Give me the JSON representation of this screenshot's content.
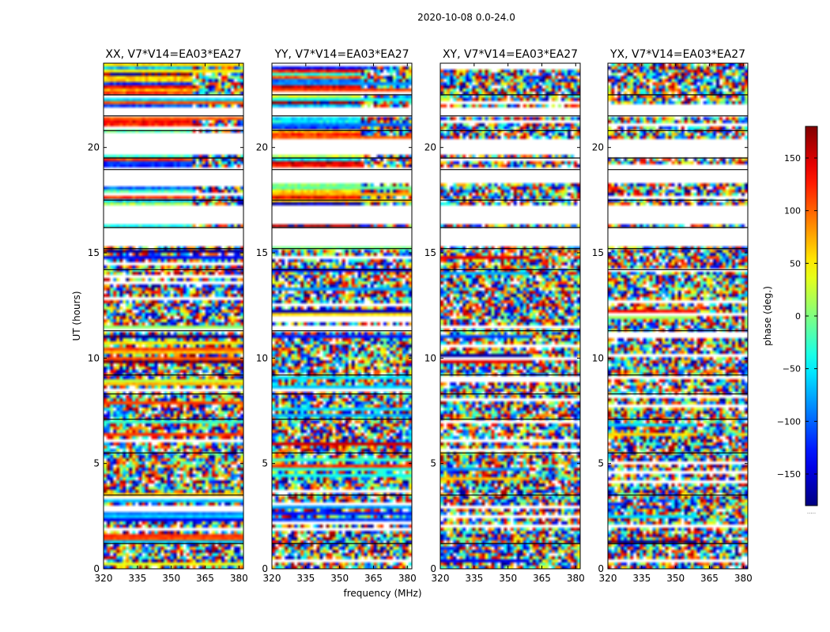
{
  "suptitle": "2020-10-08 0.0-24.0",
  "chart_data": {
    "type": "heatmap",
    "description_axis": {
      "xlabel": "frequency (MHz)",
      "ylabel": "UT (hours)",
      "xlim": [
        320,
        382
      ],
      "ylim": [
        0,
        24
      ],
      "xticks": [
        320,
        335,
        350,
        365,
        380
      ],
      "yticks": [
        0,
        5,
        10,
        15,
        20
      ]
    },
    "panels": [
      {
        "title": "XX, V7*V14=EA03*EA27",
        "mode": "coherent"
      },
      {
        "title": "YY, V7*V14=EA03*EA27",
        "mode": "coherent"
      },
      {
        "title": "XY, V7*V14=EA03*EA27",
        "mode": "noise"
      },
      {
        "title": "YX, V7*V14=EA03*EA27",
        "mode": "noise"
      }
    ],
    "colorbar": {
      "label": "phase (deg.)",
      "range": [
        -180,
        180
      ],
      "ticks": [
        -150,
        -100,
        -50,
        0,
        50,
        100,
        150
      ],
      "tick_labels": [
        "−150",
        "−100",
        "−50",
        "0",
        "50",
        "100",
        "150"
      ],
      "colormap": "jet",
      "extra_label": "....."
    },
    "blank_ut_ranges": [
      [
        21.5,
        21.9
      ],
      [
        19.6,
        20.4
      ],
      [
        18.3,
        19.0
      ],
      [
        16.3,
        17.2
      ],
      [
        15.3,
        16.2
      ]
    ],
    "black_lines_ut": [
      22.5,
      21.5,
      20.8,
      19.5,
      18.95,
      17.5,
      16.2,
      15.2,
      14.2,
      11.3,
      9.2,
      8.3,
      7.1,
      5.5,
      3.5,
      1.2
    ]
  }
}
